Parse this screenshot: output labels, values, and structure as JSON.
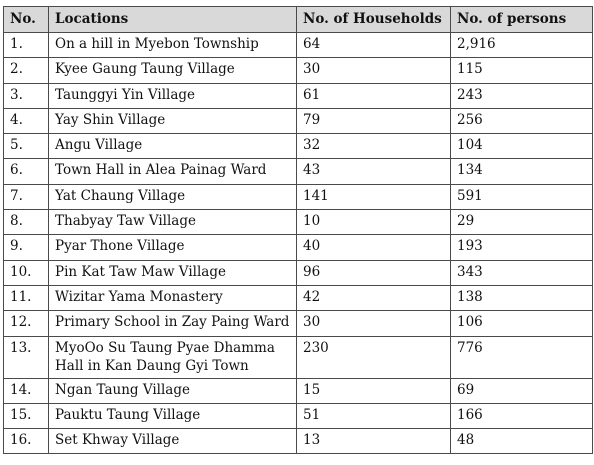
{
  "table": {
    "headers": {
      "no": "No.",
      "location": "Locations",
      "households": "No. of Households",
      "persons": "No. of persons"
    },
    "rows": [
      {
        "no": "1.",
        "location": "On a hill in Myebon Township",
        "households": "64",
        "persons": "2,916"
      },
      {
        "no": "2.",
        "location": "Kyee Gaung Taung Village",
        "households": "30",
        "persons": "115"
      },
      {
        "no": "3.",
        "location": "Taunggyi Yin Village",
        "households": "61",
        "persons": "243"
      },
      {
        "no": "4.",
        "location": "Yay Shin Village",
        "households": "79",
        "persons": "256"
      },
      {
        "no": "5.",
        "location": "Angu Village",
        "households": "32",
        "persons": "104"
      },
      {
        "no": "6.",
        "location": "Town Hall in Alea Painag Ward",
        "households": "43",
        "persons": "134"
      },
      {
        "no": "7.",
        "location": "Yat Chaung Village",
        "households": "141",
        "persons": "591"
      },
      {
        "no": "8.",
        "location": "Thabyay Taw Village",
        "households": "10",
        "persons": "29"
      },
      {
        "no": "9.",
        "location": "Pyar Thone Village",
        "households": "40",
        "persons": "193"
      },
      {
        "no": "10.",
        "location": "Pin Kat Taw Maw Village",
        "households": "96",
        "persons": "343"
      },
      {
        "no": "11.",
        "location": "Wizitar Yama Monastery",
        "households": "42",
        "persons": "138"
      },
      {
        "no": "12.",
        "location": "Primary School in Zay Paing Ward",
        "households": "30",
        "persons": "106"
      },
      {
        "no": "13.",
        "location": "MyoOo Su Taung Pyae Dhamma Hall in Kan Daung Gyi Town",
        "households": "230",
        "persons": "776"
      },
      {
        "no": "14.",
        "location": "Ngan Taung Village",
        "households": "15",
        "persons": "69"
      },
      {
        "no": "15.",
        "location": "Pauktu Taung Village",
        "households": "51",
        "persons": "166"
      },
      {
        "no": "16.",
        "location": "Set Khway Village",
        "households": "13",
        "persons": "48"
      }
    ]
  }
}
